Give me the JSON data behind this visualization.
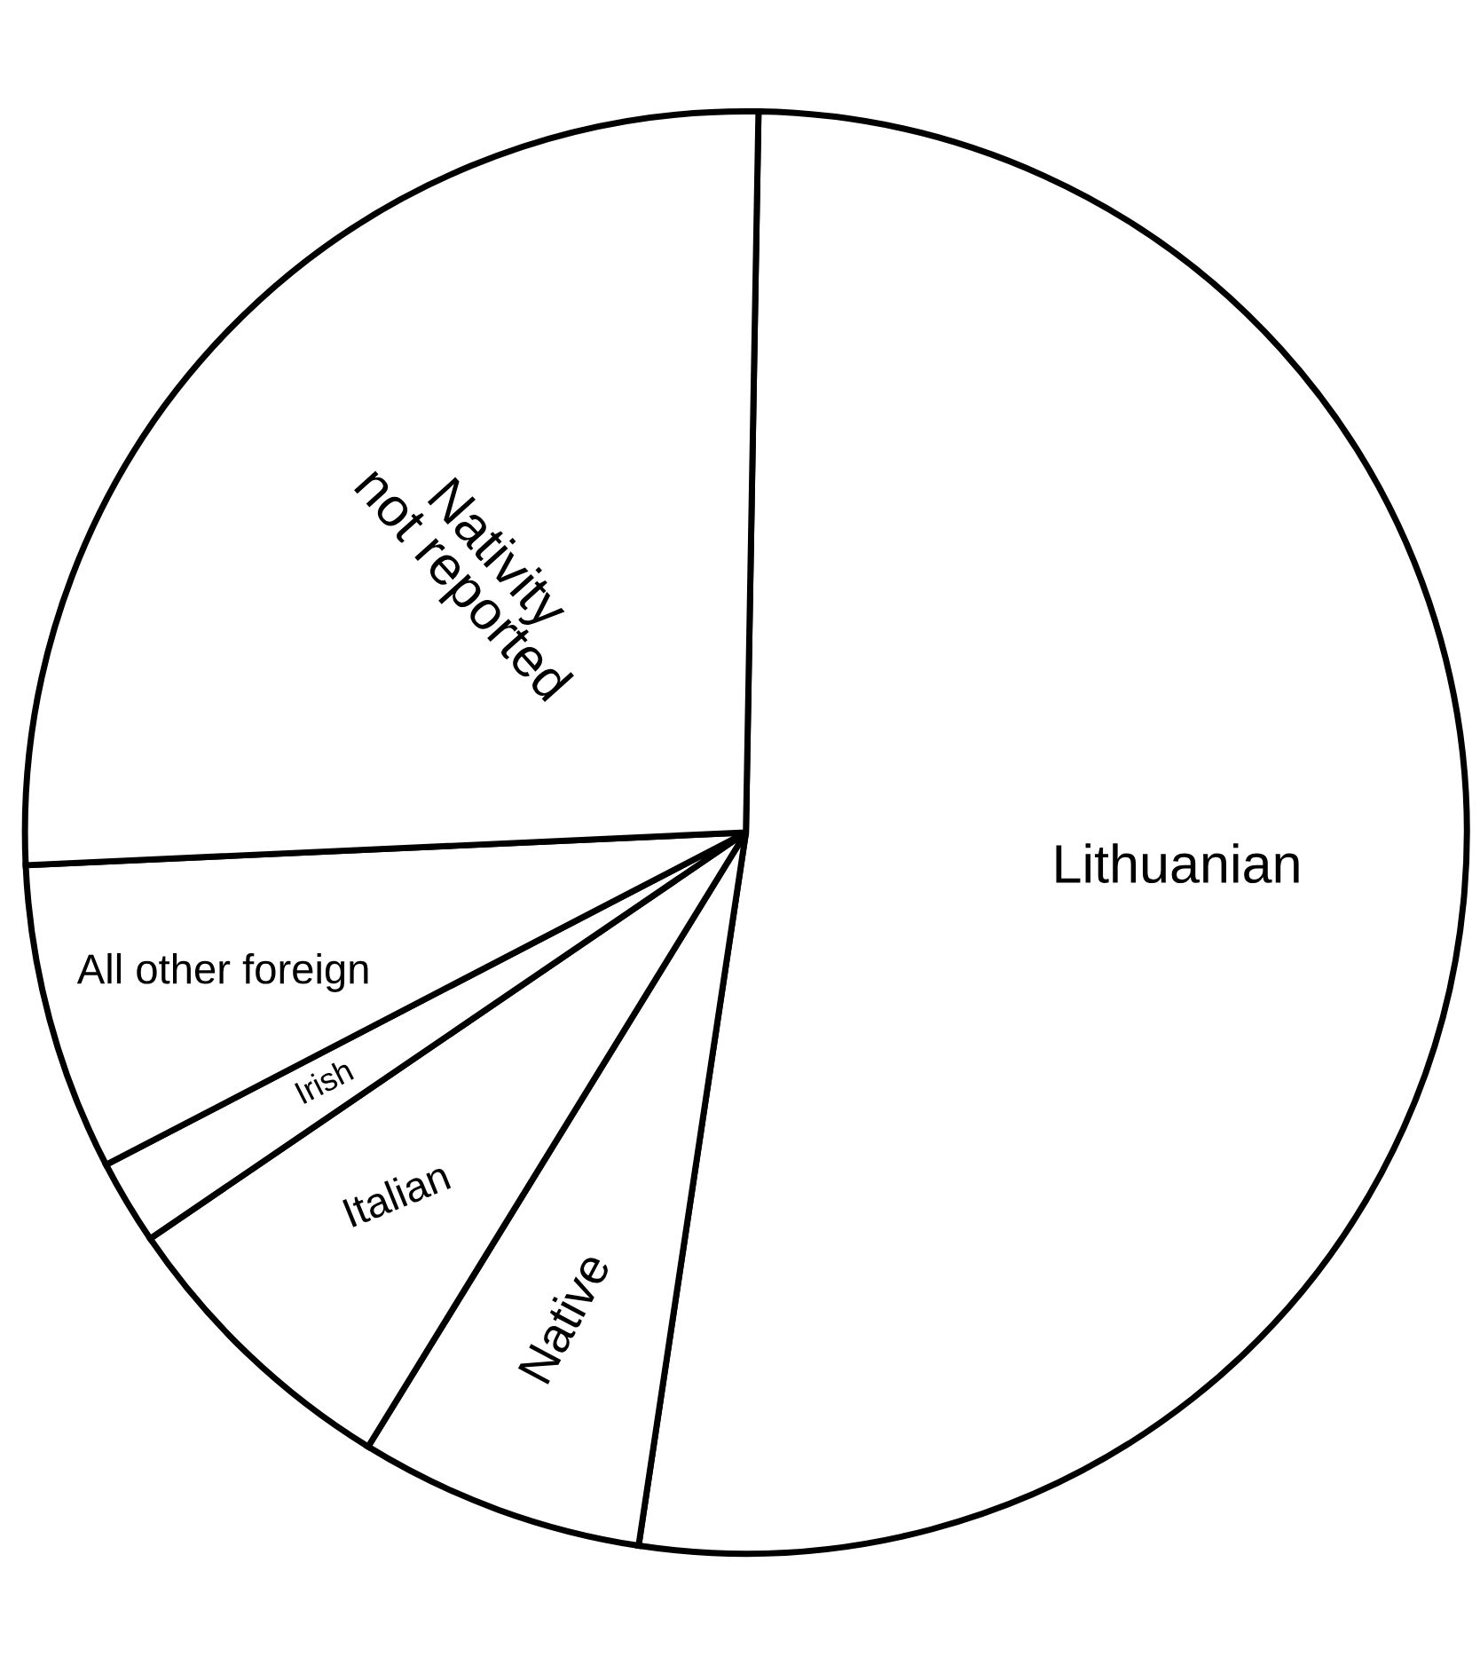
{
  "chart_data": {
    "type": "pie",
    "categories": [
      "Lithuanian",
      "Native",
      "Italian",
      "Irish",
      "All other foreign",
      "Nativity\nnot reported"
    ],
    "values": [
      52.1,
      6.4,
      6.7,
      1.9,
      6.9,
      26.0
    ],
    "colors": [
      "#ffffff",
      "#ffffff",
      "#ffffff",
      "#ffffff",
      "#ffffff",
      "#ffffff"
    ]
  }
}
